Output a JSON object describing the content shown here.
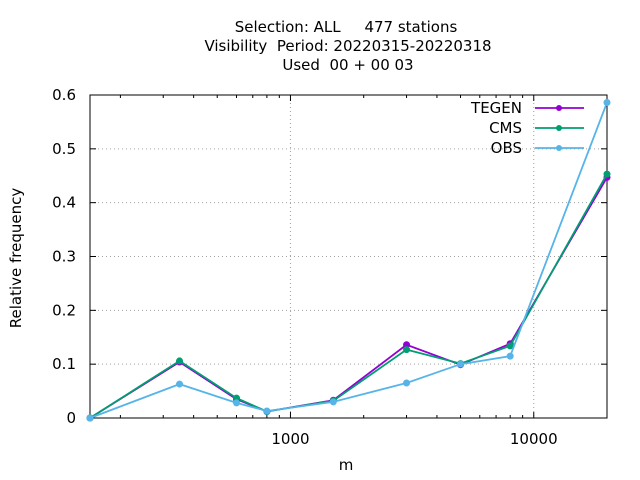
{
  "chart_data": {
    "type": "line",
    "title_lines": [
      "Selection: ALL     477 stations",
      "Visibility  Period: 20220315-20220318",
      "Used  00 + 00 03"
    ],
    "xlabel": "m",
    "ylabel": "Relative frequency",
    "x_scale": "log",
    "xlim": [
      150,
      20000
    ],
    "ylim": [
      0,
      0.6
    ],
    "x_ticks": [
      1000,
      10000
    ],
    "x_tick_labels": [
      "1000",
      "10000"
    ],
    "y_ticks": [
      0,
      0.1,
      0.2,
      0.3,
      0.4,
      0.5,
      0.6
    ],
    "y_tick_labels": [
      "0",
      "0.1",
      "0.2",
      "0.3",
      "0.4",
      "0.5",
      "0.6"
    ],
    "grid": true,
    "legend_position": "top-right",
    "x": [
      150,
      350,
      600,
      800,
      1500,
      3000,
      5000,
      8000,
      20000
    ],
    "series": [
      {
        "name": "TEGEN",
        "color": "#9400d3",
        "values": [
          0.0,
          0.104,
          0.035,
          0.012,
          0.033,
          0.136,
          0.099,
          0.138,
          0.447
        ]
      },
      {
        "name": "CMS",
        "color": "#009e73",
        "values": [
          0.0,
          0.106,
          0.037,
          0.012,
          0.032,
          0.127,
          0.101,
          0.134,
          0.453
        ]
      },
      {
        "name": "OBS",
        "color": "#56b4e9",
        "values": [
          0.0,
          0.063,
          0.028,
          0.013,
          0.03,
          0.065,
          0.1,
          0.115,
          0.586
        ]
      }
    ]
  }
}
